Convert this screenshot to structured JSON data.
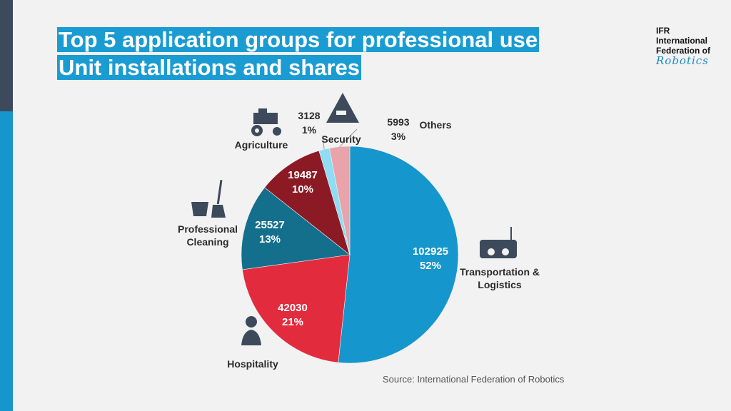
{
  "title_lines": [
    "Top 5 application groups for professional use",
    "Unit installations and shares"
  ],
  "logo": [
    "IFR",
    "International",
    "Federation of",
    "Robotics"
  ],
  "source": "Source: International Federation of Robotics",
  "chart_data": {
    "type": "pie",
    "categories": [
      "Transportation & Logistics",
      "Hospitality",
      "Professional Cleaning",
      "Agriculture",
      "Security",
      "Others"
    ],
    "values": [
      102925,
      42030,
      25527,
      19487,
      3128,
      5993
    ],
    "shares": {
      "values": [
        52,
        21,
        13,
        10,
        1,
        3
      ],
      "value_labels": [
        "52%",
        "21%",
        "13%",
        "10%",
        "1%",
        "3%"
      ]
    },
    "colors": [
      "#1596cc",
      "#e32b3e",
      "#136f8c",
      "#8b1a24",
      "#8fdcf5",
      "#e8a4aa"
    ]
  }
}
